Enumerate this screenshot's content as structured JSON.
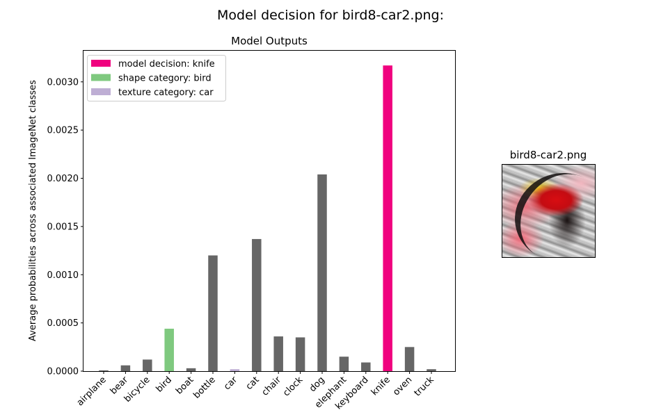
{
  "figure_title": "Model decision for bird8-car2.png:",
  "image_panel": {
    "title": "bird8-car2.png",
    "image_icon": "stimulus-image"
  },
  "colors": {
    "decision": "#f0027f",
    "shape": "#7fc97f",
    "texture": "#beaed4",
    "default": "#666666"
  },
  "chart_data": {
    "type": "bar",
    "title": "Model Outputs",
    "xlabel": "",
    "ylabel": "Average probabilities across associated ImageNet classes",
    "ylim": [
      0,
      0.00333
    ],
    "yticks": [
      "0.0000",
      "0.0005",
      "0.0010",
      "0.0015",
      "0.0020",
      "0.0025",
      "0.0030"
    ],
    "categories": [
      "airplane",
      "bear",
      "bicycle",
      "bird",
      "boat",
      "bottle",
      "car",
      "cat",
      "chair",
      "clock",
      "dog",
      "elephant",
      "keyboard",
      "knife",
      "oven",
      "truck"
    ],
    "values": [
      8e-06,
      6e-05,
      0.00012,
      0.00044,
      3e-05,
      0.0012,
      2e-05,
      0.00137,
      0.00036,
      0.00035,
      0.00204,
      0.00015,
      9e-05,
      0.00317,
      0.00025,
      2e-05
    ],
    "highlight": {
      "decision": "knife",
      "shape": "bird",
      "texture": "car"
    },
    "legend": {
      "placement": "top-left",
      "entries": [
        {
          "label": "model decision: knife",
          "role": "decision"
        },
        {
          "label": "shape category: bird",
          "role": "shape"
        },
        {
          "label": "texture category: car",
          "role": "texture"
        }
      ]
    },
    "grid": false
  }
}
